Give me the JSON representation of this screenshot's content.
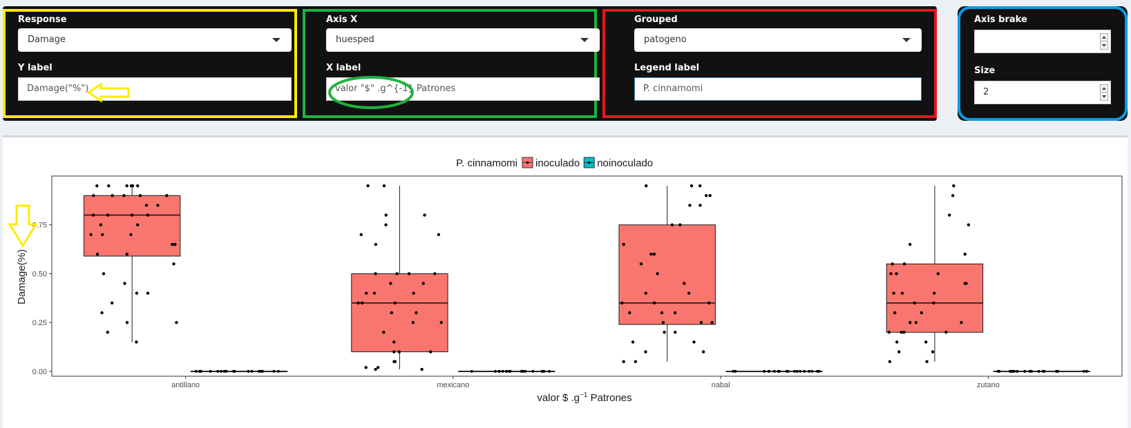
{
  "controls": {
    "response": {
      "label": "Response",
      "value": "Damage"
    },
    "y_label": {
      "label": "Y label",
      "value": "Damage(\"%\")"
    },
    "axis_x": {
      "label": "Axis X",
      "value": "huesped"
    },
    "x_label": {
      "label": "X label",
      "value": "valor \"$\"  .g^{-1} Patrones"
    },
    "grouped": {
      "label": "Grouped",
      "value": "patogeno"
    },
    "legend_label": {
      "label": "Legend label",
      "value": "P. cinnamomi"
    },
    "axis_brake": {
      "label": "Axis brake",
      "value": ""
    },
    "size": {
      "label": "Size",
      "value": "2"
    }
  },
  "highlight_colors": {
    "yellow": "#ffeb00",
    "green": "#1fb33e",
    "red": "#e5161f",
    "blue": "#0e9ae6"
  },
  "chart_data": {
    "type": "boxplot",
    "xlabel": "valor $  .g",
    "xlabel_sup": "−1",
    "xlabel_tail": " Patrones",
    "ylabel": "Damage(%)",
    "legend_title": "P. cinnamomi",
    "legend_position": "top",
    "categories": [
      "antillano",
      "mexicano",
      "nabal",
      "zutano"
    ],
    "y_ticks": [
      0.0,
      0.25,
      0.5,
      0.75
    ],
    "y_tick_labels": [
      "0.00",
      "0.25",
      "0.50",
      "0.75"
    ],
    "ylim": [
      -0.025,
      1.0
    ],
    "series": [
      {
        "name": "inoculado",
        "color": "#f8766d",
        "boxes": [
          {
            "lower": 0.15,
            "q1": 0.59,
            "median": 0.8,
            "q3": 0.9,
            "upper": 0.95
          },
          {
            "lower": 0.01,
            "q1": 0.1,
            "median": 0.35,
            "q3": 0.5,
            "upper": 0.95
          },
          {
            "lower": 0.05,
            "q1": 0.24,
            "median": 0.35,
            "q3": 0.75,
            "upper": 0.95
          },
          {
            "lower": 0.05,
            "q1": 0.2,
            "median": 0.35,
            "q3": 0.55,
            "upper": 0.95
          }
        ]
      },
      {
        "name": "noinoculado",
        "color": "#00bfc4",
        "boxes": [
          {
            "lower": 0,
            "q1": 0,
            "median": 0,
            "q3": 0,
            "upper": 0
          },
          {
            "lower": 0,
            "q1": 0,
            "median": 0,
            "q3": 0,
            "upper": 0
          },
          {
            "lower": 0,
            "q1": 0,
            "median": 0,
            "q3": 0,
            "upper": 0
          },
          {
            "lower": 0,
            "q1": 0,
            "median": 0,
            "q3": 0,
            "upper": 0
          }
        ]
      }
    ],
    "points": {
      "inoculado": [
        [
          0.95,
          0.95,
          0.95,
          0.95,
          0.95,
          0.95,
          0.9,
          0.9,
          0.9,
          0.9,
          0.9,
          0.85,
          0.85,
          0.8,
          0.8,
          0.8,
          0.8,
          0.75,
          0.75,
          0.7,
          0.7,
          0.7,
          0.65,
          0.65,
          0.6,
          0.6,
          0.55,
          0.5,
          0.45,
          0.4,
          0.4,
          0.35,
          0.3,
          0.25,
          0.25,
          0.2,
          0.15
        ],
        [
          0.95,
          0.95,
          0.8,
          0.8,
          0.75,
          0.7,
          0.7,
          0.65,
          0.5,
          0.5,
          0.5,
          0.5,
          0.45,
          0.45,
          0.4,
          0.4,
          0.4,
          0.35,
          0.35,
          0.35,
          0.3,
          0.3,
          0.25,
          0.25,
          0.2,
          0.15,
          0.1,
          0.1,
          0.1,
          0.05,
          0.05,
          0.02,
          0.01,
          0.01,
          0.02
        ],
        [
          0.95,
          0.95,
          0.95,
          0.9,
          0.9,
          0.85,
          0.85,
          0.75,
          0.75,
          0.65,
          0.6,
          0.6,
          0.55,
          0.5,
          0.45,
          0.4,
          0.4,
          0.35,
          0.35,
          0.35,
          0.3,
          0.3,
          0.3,
          0.25,
          0.25,
          0.25,
          0.2,
          0.2,
          0.15,
          0.15,
          0.1,
          0.1,
          0.05,
          0.05
        ],
        [
          0.95,
          0.9,
          0.8,
          0.75,
          0.65,
          0.6,
          0.55,
          0.55,
          0.5,
          0.5,
          0.5,
          0.45,
          0.45,
          0.4,
          0.4,
          0.4,
          0.35,
          0.35,
          0.3,
          0.3,
          0.25,
          0.25,
          0.25,
          0.2,
          0.2,
          0.2,
          0.2,
          0.15,
          0.15,
          0.1,
          0.1,
          0.05,
          0.05
        ]
      ],
      "noinoculado_count": 18
    }
  }
}
